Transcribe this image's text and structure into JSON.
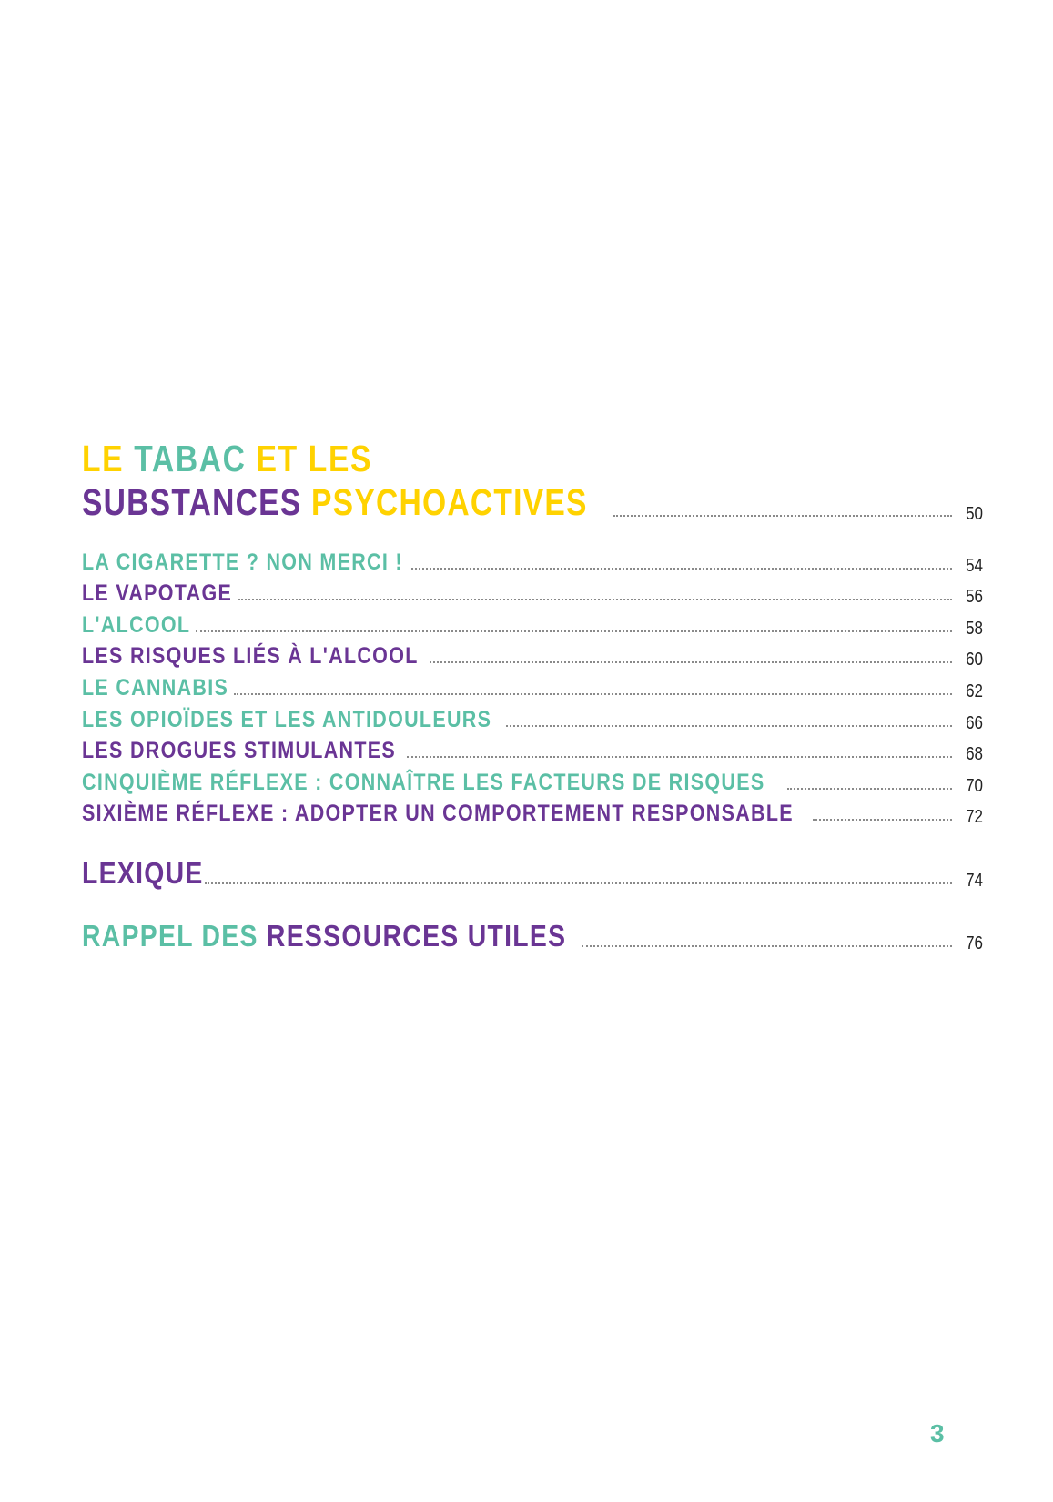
{
  "colors": {
    "yellow": "#FFD200",
    "teal": "#5BBFA5",
    "purple": "#6A3594",
    "page_number_text": "#222222"
  },
  "section": {
    "title_line1": [
      {
        "text": "LE ",
        "color": "yellow"
      },
      {
        "text": "TABAC",
        "color": "teal"
      },
      {
        "text": " ET LES",
        "color": "yellow"
      }
    ],
    "title_line2": [
      {
        "text": "SUBSTANCES",
        "color": "purple"
      },
      {
        "text": " PSYCHOACTIVES",
        "color": "yellow"
      }
    ],
    "page": "50"
  },
  "entries": [
    {
      "label": "LA CIGARETTE ? NON MERCI !",
      "color": "teal",
      "page": "54"
    },
    {
      "label": "LE VAPOTAGE",
      "color": "purple",
      "page": "56"
    },
    {
      "label": "L'ALCOOL",
      "color": "teal",
      "page": "58"
    },
    {
      "label": "LES RISQUES LIÉS À L'ALCOOL",
      "color": "purple",
      "page": "60"
    },
    {
      "label": "LE CANNABIS",
      "color": "teal",
      "page": "62"
    },
    {
      "label": "LES OPIOÏDES ET LES ANTIDOULEURS",
      "color": "teal",
      "page": "66"
    },
    {
      "label": "LES DROGUES STIMULANTES",
      "color": "purple",
      "page": "68"
    },
    {
      "label": "CINQUIÈME RÉFLEXE : CONNAÎTRE LES FACTEURS DE RISQUES",
      "color": "teal",
      "page": "70"
    },
    {
      "label": "SIXIÈME RÉFLEXE : ADOPTER UN COMPORTEMENT RESPONSABLE",
      "color": "purple",
      "page": "72"
    }
  ],
  "lexique": {
    "label": "LEXIQUE",
    "color": "purple",
    "page": "74"
  },
  "ressources": {
    "label_part1": "RAPPEL DES",
    "label_part2": " RESSOURCES UTILES",
    "page": "76"
  },
  "footer": {
    "page_number": "3"
  }
}
